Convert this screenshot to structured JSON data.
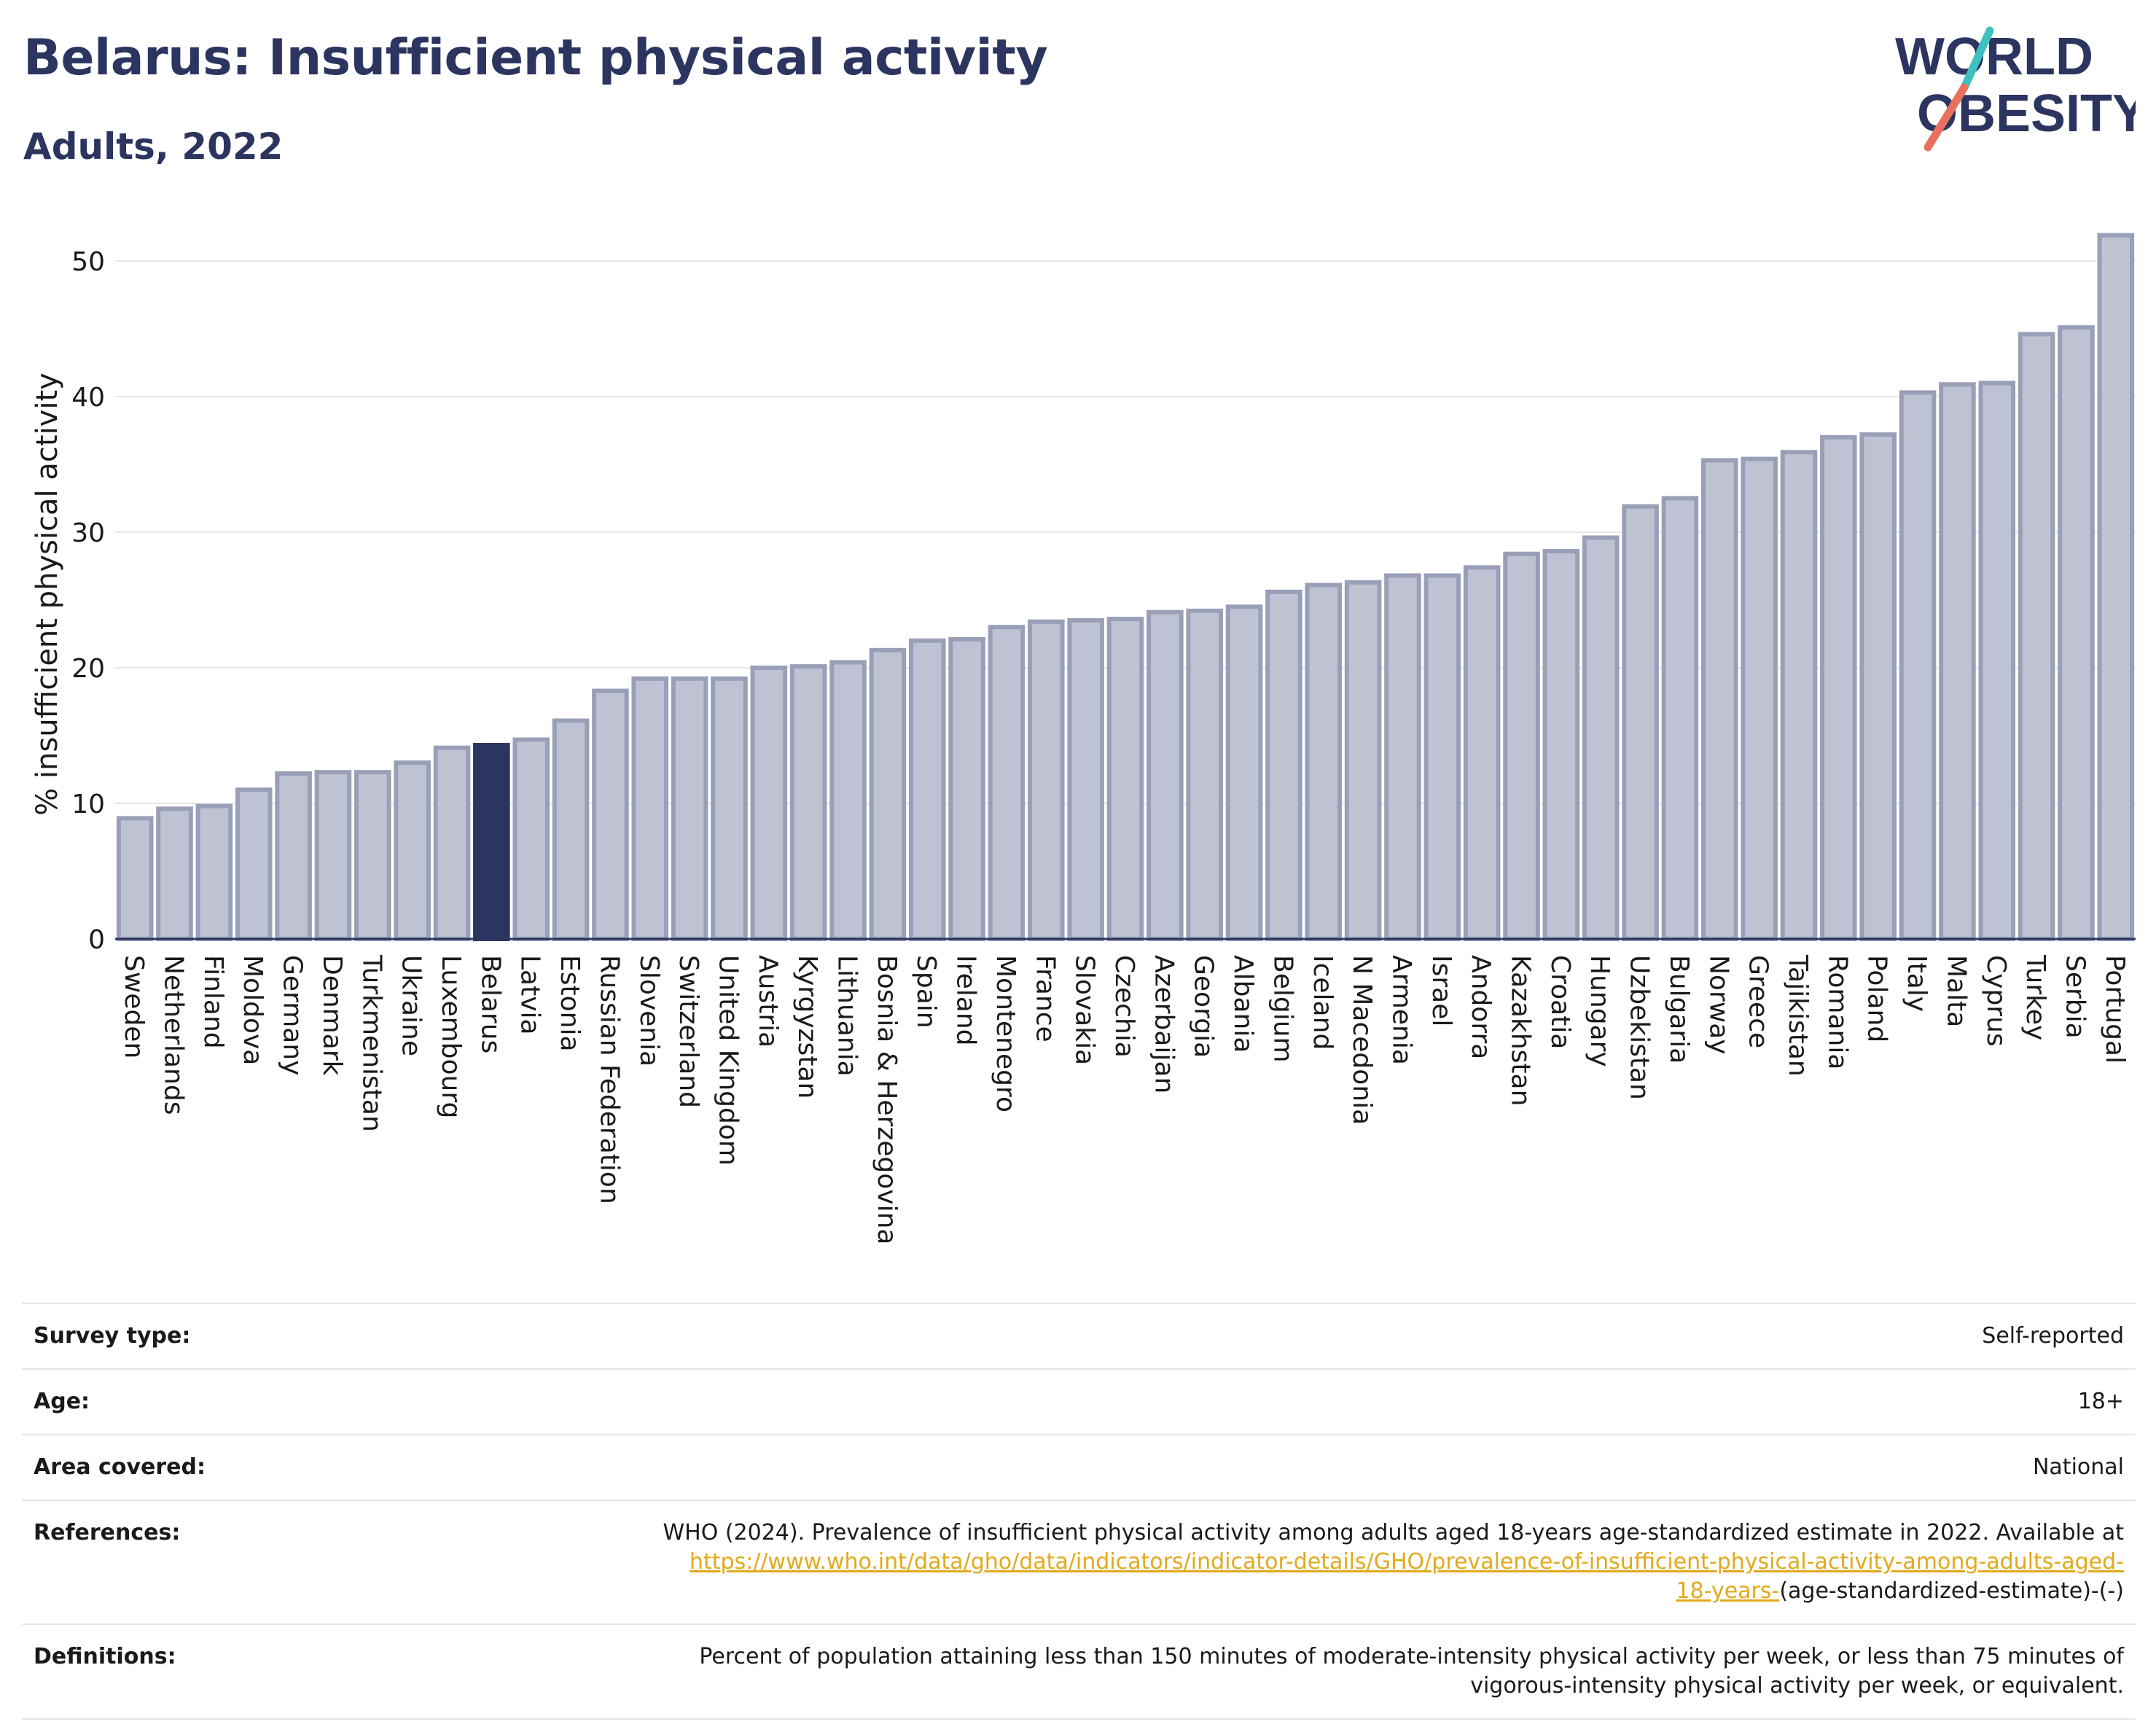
{
  "header": {
    "title": "Belarus: Insufficient physical activity",
    "subtitle": "Adults, 2022"
  },
  "logo": {
    "line1": "WORLD",
    "line2": "OBESITY",
    "accent_teal": "#3fc0c0",
    "accent_coral": "#e8705e",
    "text_color": "#2b3560"
  },
  "colors": {
    "bar": "#bfc2d2",
    "bar_border": "#9a9fb8",
    "highlight": "#2b3560",
    "grid": "#e6e6e6",
    "axis": "#2b3560"
  },
  "chart_data": {
    "type": "bar",
    "ylabel": "% insufficient physical activity",
    "ylim": [
      0,
      54
    ],
    "yticks": [
      0,
      10,
      20,
      30,
      40,
      50
    ],
    "grid": true,
    "highlight": "Belarus",
    "categories": [
      "Sweden",
      "Netherlands",
      "Finland",
      "Moldova",
      "Germany",
      "Denmark",
      "Turkmenistan",
      "Ukraine",
      "Luxembourg",
      "Belarus",
      "Latvia",
      "Estonia",
      "Russian Federation",
      "Slovenia",
      "Switzerland",
      "United Kingdom",
      "Austria",
      "Kyrgyzstan",
      "Lithuania",
      "Bosnia & Herzegovina",
      "Spain",
      "Ireland",
      "Montenegro",
      "France",
      "Slovakia",
      "Czechia",
      "Azerbaijan",
      "Georgia",
      "Albania",
      "Belgium",
      "Iceland",
      "N Macedonia",
      "Armenia",
      "Israel",
      "Andorra",
      "Kazakhstan",
      "Croatia",
      "Hungary",
      "Uzbekistan",
      "Bulgaria",
      "Norway",
      "Greece",
      "Tajikistan",
      "Romania",
      "Poland",
      "Italy",
      "Malta",
      "Cyprus",
      "Turkey",
      "Serbia",
      "Portugal"
    ],
    "values": [
      8.9,
      9.6,
      9.8,
      11.0,
      12.2,
      12.3,
      12.3,
      13.0,
      14.1,
      14.3,
      14.7,
      16.1,
      18.3,
      19.2,
      19.2,
      19.2,
      20.0,
      20.1,
      20.4,
      21.3,
      22.0,
      22.1,
      23.0,
      23.4,
      23.5,
      23.6,
      24.1,
      24.2,
      24.5,
      25.6,
      26.1,
      26.3,
      26.8,
      26.8,
      27.4,
      28.4,
      28.6,
      29.6,
      31.9,
      32.5,
      35.3,
      35.4,
      35.9,
      37.0,
      37.2,
      40.3,
      40.9,
      41.0,
      44.6,
      45.1,
      51.9
    ]
  },
  "details": {
    "survey_type_label": "Survey type:",
    "survey_type_value": "Self-reported",
    "age_label": "Age:",
    "age_value": "18+",
    "area_label": "Area covered:",
    "area_value": "National",
    "references_label": "References:",
    "references_text": "WHO (2024). Prevalence of insufficient physical activity among adults aged 18-years age-standardized estimate in 2022. Available at",
    "references_link_part1": "https://www.who.int/data/gho/data/indicators/indicator-details/GHO/prevalence-of-insufficient-physical-activity-among-adults-aged-",
    "references_link_part2": "18-years-",
    "references_suffix": "(age-standardized-estimate)-(-)",
    "definitions_label": "Definitions:",
    "definitions_line1": "Percent of population attaining less than 150 minutes of moderate-intensity physical activity per week, or less than 75 minutes of",
    "definitions_line2": "vigorous-intensity physical activity per week, or equivalent."
  }
}
